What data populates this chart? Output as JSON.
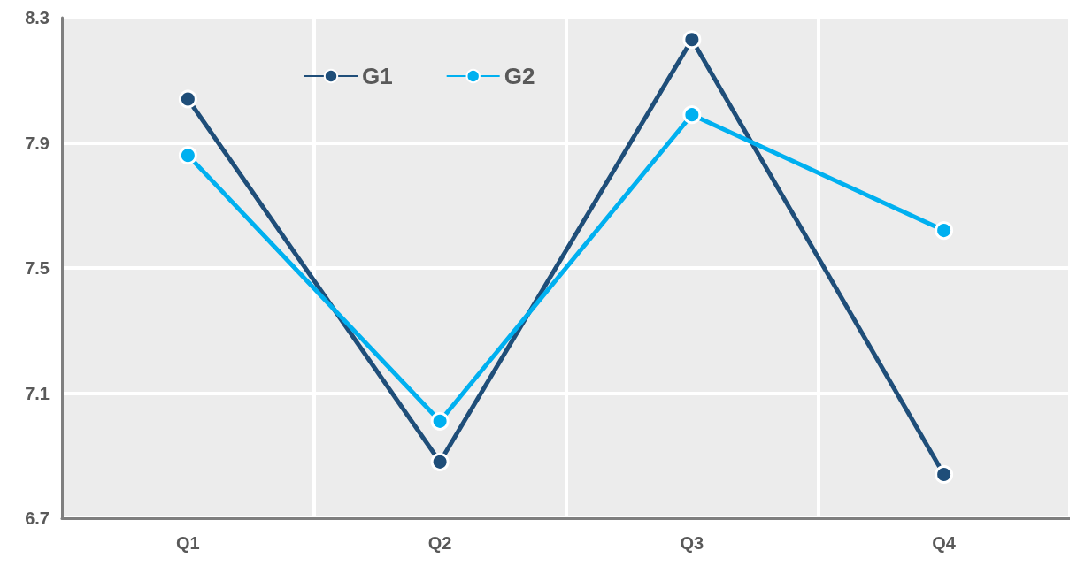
{
  "chart_data": {
    "type": "line",
    "categories": [
      "Q1",
      "Q2",
      "Q3",
      "Q4"
    ],
    "series": [
      {
        "name": "G1",
        "color": "#1f4e79",
        "values": [
          8.04,
          6.88,
          8.23,
          6.84
        ]
      },
      {
        "name": "G2",
        "color": "#00b0f0",
        "values": [
          7.86,
          7.01,
          7.99,
          7.62
        ]
      }
    ],
    "ylim": [
      6.7,
      8.3
    ],
    "yticks": [
      6.7,
      7.1,
      7.5,
      7.9,
      8.3
    ],
    "grid": true,
    "legend": "top left",
    "marker": "circle",
    "line_style": "solid"
  }
}
